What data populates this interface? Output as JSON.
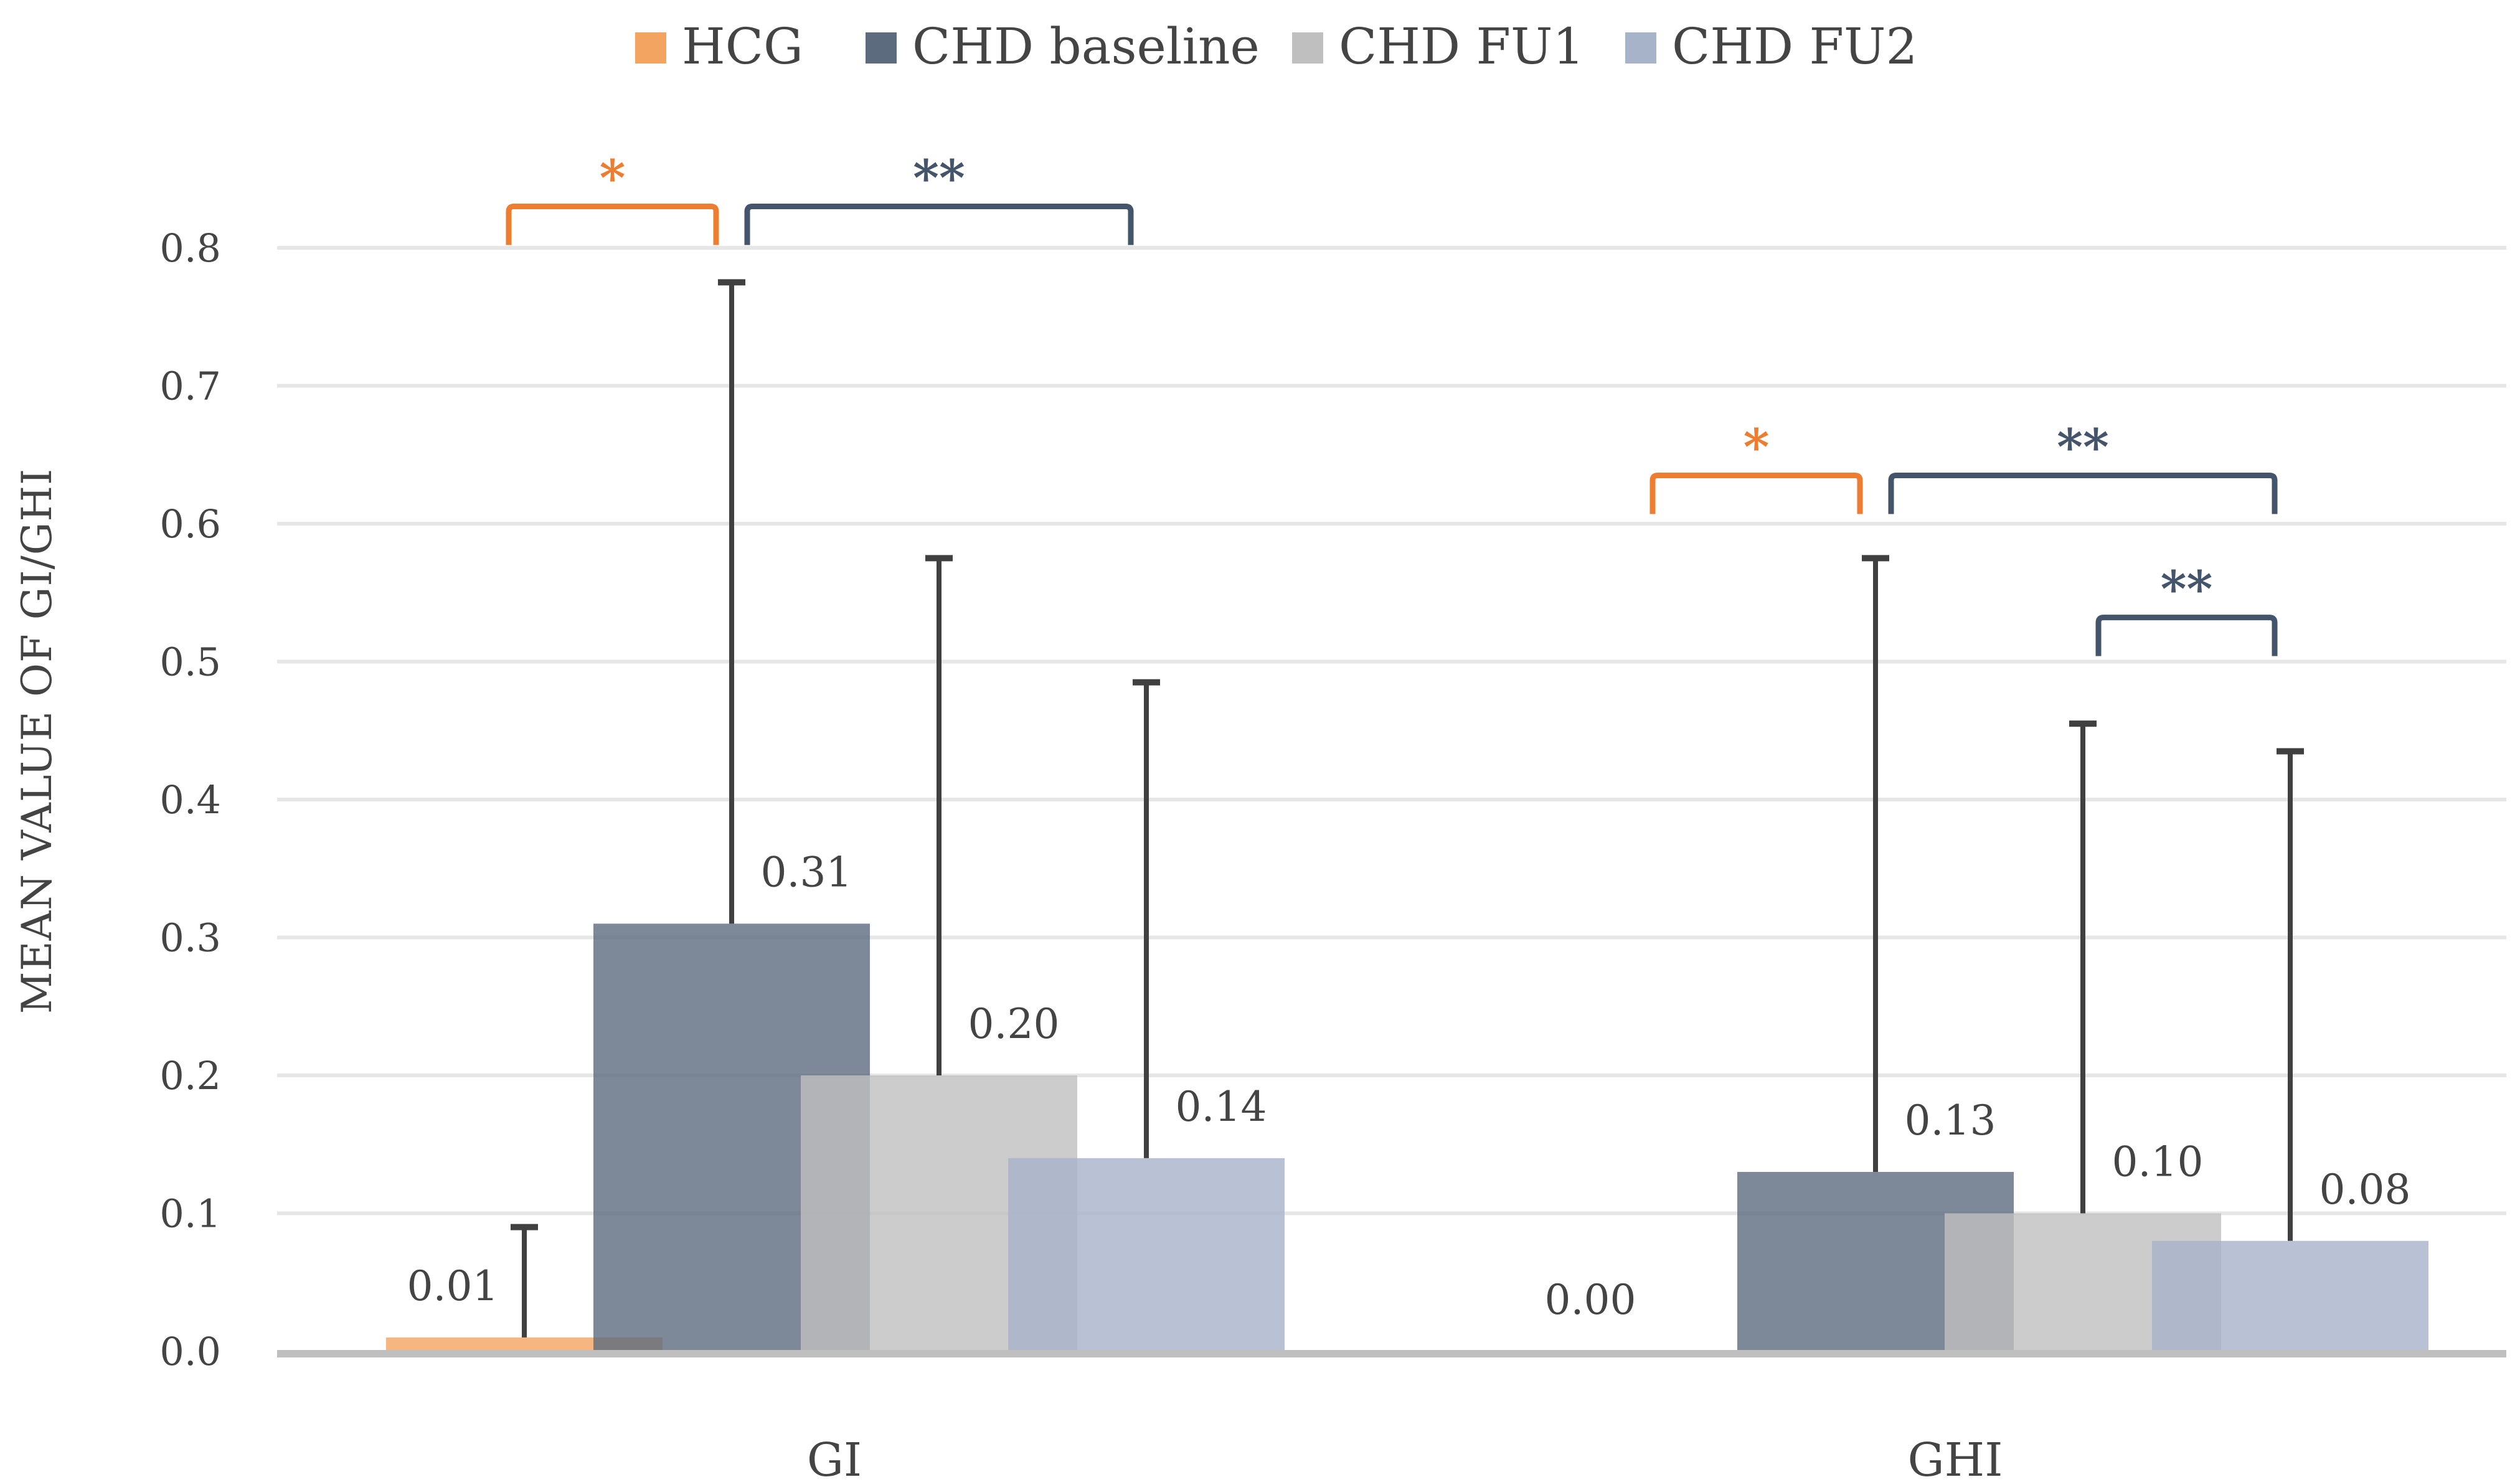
{
  "chart_data": {
    "type": "bar",
    "categories": [
      "GI",
      "GHI"
    ],
    "series": [
      {
        "name": "HCG",
        "values": [
          0.01,
          0.0
        ],
        "error": [
          0.08,
          null
        ],
        "color": "#F4A461",
        "data_labels": [
          "0.01",
          "0.00"
        ]
      },
      {
        "name": "CHD baseline",
        "values": [
          0.31,
          0.13
        ],
        "error": [
          0.465,
          0.445
        ],
        "color": "#5D6B7E",
        "data_labels": [
          "0.31",
          "0.13"
        ]
      },
      {
        "name": "CHD FU1",
        "values": [
          0.2,
          0.1
        ],
        "error": [
          0.375,
          0.355
        ],
        "color": "#BFBFBF",
        "data_labels": [
          "0.20",
          "0.10"
        ]
      },
      {
        "name": "CHD FU2",
        "values": [
          0.14,
          0.08
        ],
        "error": [
          0.345,
          0.355
        ],
        "color": "#A6B3C9",
        "data_labels": [
          "0.14",
          "0.08"
        ]
      }
    ],
    "ylabel": "MEAN VALUE OF GI/GHI",
    "xlabel": "",
    "ylim": [
      0,
      0.8
    ],
    "yticks": [
      "0.0",
      "0.1",
      "0.2",
      "0.3",
      "0.4",
      "0.5",
      "0.6",
      "0.7",
      "0.8"
    ],
    "grid": true,
    "legend_position": "top",
    "bar_opacity": 0.8,
    "significance": [
      {
        "category": "GI",
        "between": [
          "HCG",
          "CHD baseline"
        ],
        "label": "*",
        "color": "#ED7D31"
      },
      {
        "category": "GI",
        "between": [
          "CHD baseline",
          "CHD FU2"
        ],
        "label": "**",
        "color": "#44546A"
      },
      {
        "category": "GHI",
        "between": [
          "HCG",
          "CHD baseline"
        ],
        "label": "*",
        "color": "#ED7D31"
      },
      {
        "category": "GHI",
        "between": [
          "CHD baseline",
          "CHD FU2"
        ],
        "label": "**",
        "color": "#44546A"
      },
      {
        "category": "GHI",
        "between": [
          "CHD FU1",
          "CHD FU2"
        ],
        "label": "**",
        "color": "#44546A"
      }
    ]
  }
}
